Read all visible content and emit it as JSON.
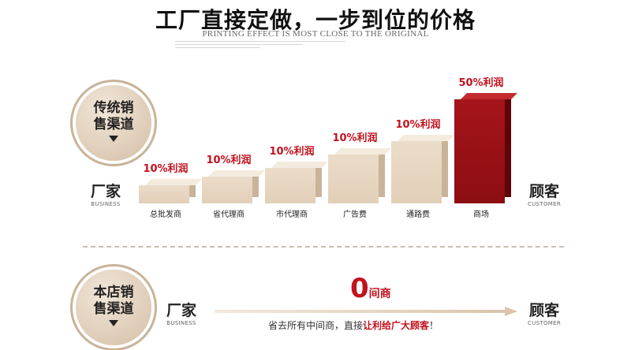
{
  "header": {
    "title": "工厂直接定做，一步到位的价格",
    "subtitle": "PRINTING EFFECT IS MOST CLOSE TO THE ORIGINAL"
  },
  "traditional": {
    "badge_line1": "传统销",
    "badge_line2": "售渠道",
    "factory_zh": "厂家",
    "factory_en": "BUSINESS",
    "customer_zh": "顾客",
    "customer_en": "CUSTOMER",
    "stages": [
      {
        "label": "总批发商",
        "profit": "10%利润",
        "level": 0.22
      },
      {
        "label": "省代理商",
        "profit": "10%利润",
        "level": 0.3
      },
      {
        "label": "市代理商",
        "profit": "10%利润",
        "level": 0.38
      },
      {
        "label": "广告费",
        "profit": "10%利润",
        "level": 0.5
      },
      {
        "label": "通路费",
        "profit": "10%利润",
        "level": 0.62
      },
      {
        "label": "商场",
        "profit": "50%利润",
        "level": 1.0
      }
    ]
  },
  "store": {
    "badge_line1": "本店销",
    "badge_line2": "售渠道",
    "factory_zh": "厂家",
    "factory_en": "BUSINESS",
    "customer_zh": "顾客",
    "customer_en": "CUSTOMER",
    "zero": "0",
    "zero_label": "间商",
    "note_prefix": "省去所有中间商，直接",
    "note_highlight": "让利给广大顾客",
    "note_suffix": "！"
  },
  "colors": {
    "accent_red": "#c1121f",
    "bar_beige": "#e6d5c0",
    "bar_red": "#9a1016"
  }
}
